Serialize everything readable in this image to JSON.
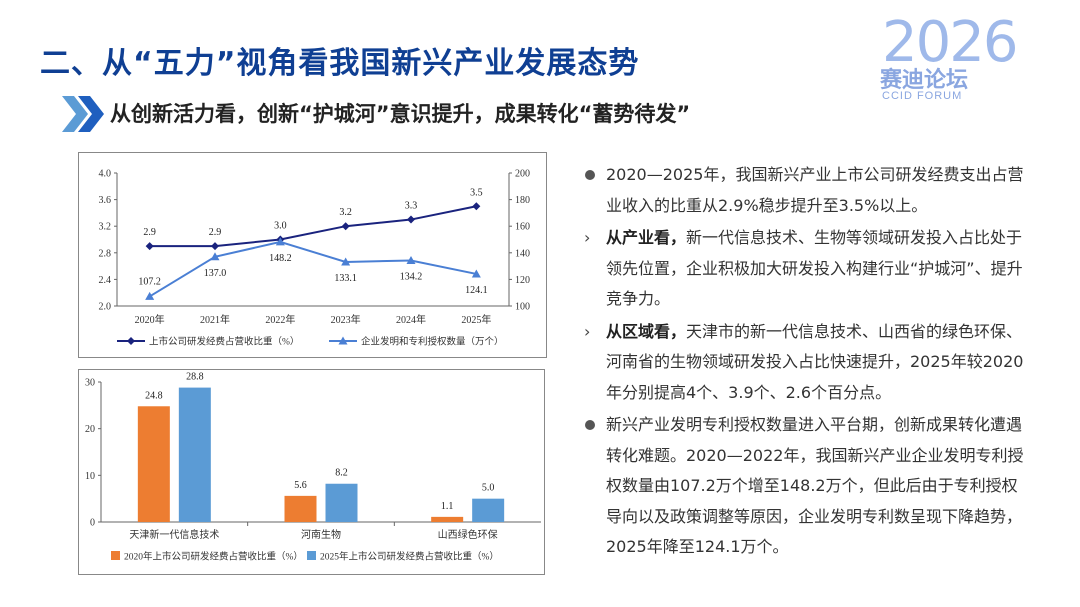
{
  "header": {
    "title": "二、从“五力”视角看我国新兴产业发展态势",
    "subtitle": "从创新活力看，创新“护城河”意识提升，成果转化“蓄势待发”",
    "logo": {
      "number": "2026",
      "cn": "赛迪论坛",
      "en": "CCID FORUM"
    }
  },
  "colors": {
    "title": "#0f3f93",
    "navy": "#1a237e",
    "blue": "#4a7fd4",
    "orange": "#ed7d31",
    "sky": "#5b9bd5",
    "logo": "#9fb9ea"
  },
  "chart_data": [
    {
      "type": "line",
      "categories": [
        "2020年",
        "2021年",
        "2022年",
        "2023年",
        "2024年",
        "2025年"
      ],
      "series": [
        {
          "name": "上市公司研发经费占营收比重（%）",
          "axis": "left",
          "values": [
            2.9,
            2.9,
            3.0,
            3.2,
            3.3,
            3.5
          ],
          "labels": [
            "2.9",
            "2.9",
            "3.0",
            "3.2",
            "3.3",
            "3.5"
          ]
        },
        {
          "name": "企业发明和专利授权数量（万个）",
          "axis": "right",
          "values": [
            107.2,
            137.0,
            148.2,
            133.1,
            134.2,
            124.1
          ],
          "labels": [
            "107.2",
            "137.0",
            "148.2",
            "133.1",
            "134.2",
            "124.1"
          ]
        }
      ],
      "ylim_left": [
        2.0,
        4.0
      ],
      "yticks_left": [
        "2.0",
        "2.4",
        "2.8",
        "3.2",
        "3.6",
        "4.0"
      ],
      "ylim_right": [
        100,
        200
      ],
      "yticks_right": [
        "100",
        "120",
        "140",
        "160",
        "180",
        "200"
      ],
      "legend": "bottom"
    },
    {
      "type": "bar",
      "categories": [
        "天津新一代信息技术",
        "河南生物",
        "山西绿色环保"
      ],
      "series": [
        {
          "name": "2020年上市公司研发经费占营收比重（%）",
          "values": [
            24.8,
            5.6,
            1.1
          ],
          "labels": [
            "24.8",
            "5.6",
            "1.1"
          ]
        },
        {
          "name": "2025年上市公司研发经费占营收比重（%）",
          "values": [
            28.8,
            8.2,
            5.0
          ],
          "labels": [
            "28.8",
            "8.2",
            "5.0"
          ]
        }
      ],
      "ylim": [
        0,
        30
      ],
      "yticks": [
        "0",
        "10",
        "20",
        "30"
      ],
      "legend": "bottom"
    }
  ],
  "bullets": [
    {
      "lead": "",
      "text": "2020—2025年，我国新兴产业上市公司研发经费支出占营业收入的比重从2.9%稳步提升至3.5%以上。"
    },
    {
      "lead": "从产业看，",
      "text": "新一代信息技术、生物等领域研发投入占比处于领先位置，企业积极加大研发投入构建行业“护城河”、提升竞争力。"
    },
    {
      "lead": "从区域看，",
      "text": "天津市的新一代信息技术、山西省的绿色环保、河南省的生物领域研发投入占比快速提升，2025年较2020年分别提高4个、3.9个、2.6个百分点。"
    },
    {
      "lead": "",
      "text": "新兴产业发明专利授权数量进入平台期，创新成果转化遭遇转化难题。2020—2022年，我国新兴产业企业发明专利授权数量由107.2万个增至148.2万个，但此后由于专利授权导向以及政策调整等原因，企业发明专利数呈现下降趋势，2025年降至124.1万个。"
    }
  ]
}
